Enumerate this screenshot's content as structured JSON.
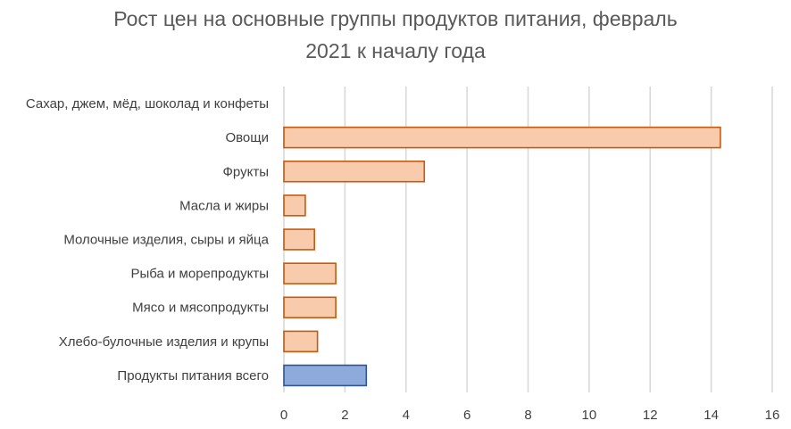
{
  "chart_data": {
    "type": "bar",
    "orientation": "horizontal",
    "title_line1": "Рост цен на основные группы продуктов питания, февраль",
    "title_line2": "2021 к началу года",
    "categories": [
      "Сахар, джем, мёд, шоколад и конфеты",
      "Овощи",
      "Фрукты",
      "Масла и жиры",
      "Молочные изделия, сыры и яйца",
      "Рыба и морепродукты",
      "Мясо и мясопродукты",
      "Хлебо-булочные изделия и крупы",
      "Продукты питания всего"
    ],
    "values": [
      0,
      14.3,
      4.6,
      0.7,
      1.0,
      1.7,
      1.7,
      1.1,
      2.7
    ],
    "highlight_index": 8,
    "xlim": [
      0,
      16
    ],
    "xticks": [
      0,
      2,
      4,
      6,
      8,
      10,
      12,
      14,
      16
    ],
    "grid": true,
    "colors": {
      "bar_fill": "#F8CBAD",
      "bar_stroke": "#C55A11",
      "highlight_fill": "#8EA9DB",
      "highlight_stroke": "#2F5597",
      "grid": "#D9D9D9",
      "title": "#595959",
      "text": "#404040"
    }
  }
}
